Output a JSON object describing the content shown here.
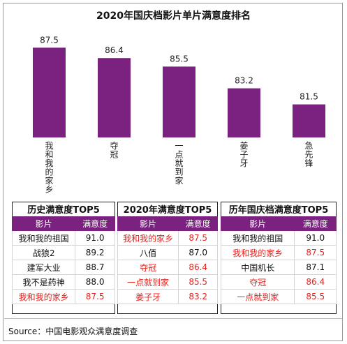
{
  "chart_data": {
    "type": "bar",
    "title": "2020年国庆档影片单片满意度排名",
    "categories": [
      "我和我的家乡",
      "夺冠",
      "一点就到家",
      "姜子牙",
      "急先锋"
    ],
    "values": [
      87.5,
      86.4,
      85.5,
      83.2,
      81.5
    ],
    "value_labels": [
      "87.5",
      "86.4",
      "85.5",
      "83.2",
      "81.5"
    ],
    "ylim": [
      78,
      89
    ],
    "bar_color": "#7b2180",
    "grid": false,
    "legend": "none"
  },
  "tables": [
    {
      "caption": "历史满意度TOP5",
      "headers": [
        "影片",
        "满意度"
      ],
      "rows": [
        {
          "name": "我和我的祖国",
          "score": "91.0",
          "highlight": false
        },
        {
          "name": "战狼2",
          "score": "89.2",
          "highlight": false
        },
        {
          "name": "建军大业",
          "score": "88.7",
          "highlight": false
        },
        {
          "name": "我不是药神",
          "score": "88.0",
          "highlight": false
        },
        {
          "name": "我和我的家乡",
          "score": "87.5",
          "highlight": true
        }
      ]
    },
    {
      "caption": "2020年满意度TOP5",
      "headers": [
        "影片",
        "满意度"
      ],
      "rows": [
        {
          "name": "我和我的家乡",
          "score": "87.5",
          "highlight": true
        },
        {
          "name": "八佰",
          "score": "87.0",
          "highlight": false
        },
        {
          "name": "夺冠",
          "score": "86.4",
          "highlight": true
        },
        {
          "name": "一点就到家",
          "score": "85.5",
          "highlight": true
        },
        {
          "name": "姜子牙",
          "score": "83.2",
          "highlight": true
        }
      ]
    },
    {
      "caption": "历年国庆档满意度TOP5",
      "headers": [
        "影片",
        "满意度"
      ],
      "rows": [
        {
          "name": "我和我的祖国",
          "score": "91.0",
          "highlight": false
        },
        {
          "name": "我和我的家乡",
          "score": "87.5",
          "highlight": true
        },
        {
          "name": "中国机长",
          "score": "87.1",
          "highlight": false
        },
        {
          "name": "夺冠",
          "score": "86.4",
          "highlight": true
        },
        {
          "name": "一点就到家",
          "score": "85.5",
          "highlight": true
        }
      ]
    }
  ],
  "colors": {
    "header_bg": "#7b2180",
    "highlight_text": "#e8231f"
  },
  "source": "Source：中国电影观众满意度调查"
}
